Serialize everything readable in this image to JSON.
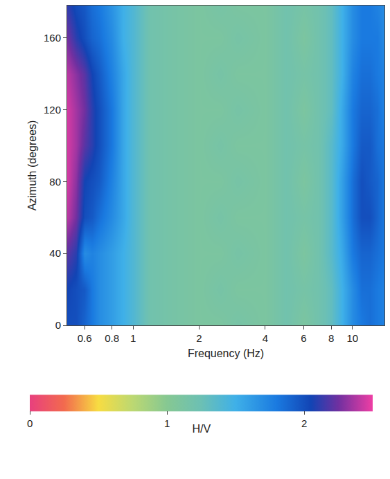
{
  "chart_data": {
    "type": "heatmap",
    "xlabel": "Frequency (Hz)",
    "ylabel": "Azimuth (degrees)",
    "log": "x",
    "x": [
      0.5,
      0.55,
      0.6,
      0.65,
      0.7,
      0.8,
      0.9,
      1.0,
      1.2,
      1.5,
      2,
      2.5,
      3,
      4,
      5,
      6,
      7,
      8,
      9,
      10,
      11,
      12,
      13,
      14
    ],
    "y": [
      0,
      20,
      40,
      60,
      80,
      100,
      120,
      140,
      160,
      180
    ],
    "z": [
      [
        2.0,
        2.0,
        1.9,
        1.8,
        1.7,
        1.6,
        1.5,
        1.4,
        1.2,
        1.15,
        1.1,
        1.1,
        1.15,
        1.1,
        1.2,
        1.1,
        1.2,
        1.3,
        1.5,
        1.7,
        1.8,
        1.85,
        1.8,
        1.75
      ],
      [
        2.05,
        2.0,
        1.95,
        1.8,
        1.7,
        1.6,
        1.5,
        1.4,
        1.2,
        1.15,
        1.1,
        1.15,
        1.1,
        1.1,
        1.2,
        1.15,
        1.2,
        1.3,
        1.5,
        1.7,
        1.85,
        1.85,
        1.8,
        1.75
      ],
      [
        2.2,
        2.1,
        1.7,
        1.75,
        1.7,
        1.6,
        1.5,
        1.4,
        1.2,
        1.15,
        1.1,
        1.1,
        1.15,
        1.1,
        1.2,
        1.1,
        1.2,
        1.35,
        1.55,
        1.8,
        1.9,
        1.9,
        1.85,
        1.8
      ],
      [
        2.4,
        2.25,
        2.0,
        1.95,
        1.85,
        1.7,
        1.55,
        1.4,
        1.2,
        1.15,
        1.1,
        1.15,
        1.1,
        1.1,
        1.2,
        1.15,
        1.2,
        1.35,
        1.6,
        1.85,
        2.0,
        2.0,
        1.9,
        1.8
      ],
      [
        2.45,
        2.3,
        2.05,
        2.0,
        1.95,
        1.75,
        1.55,
        1.4,
        1.2,
        1.15,
        1.1,
        1.1,
        1.15,
        1.1,
        1.2,
        1.1,
        1.2,
        1.35,
        1.6,
        1.85,
        2.0,
        1.95,
        1.9,
        1.8
      ],
      [
        2.45,
        2.35,
        2.2,
        2.1,
        2.0,
        1.8,
        1.55,
        1.4,
        1.2,
        1.15,
        1.1,
        1.15,
        1.1,
        1.1,
        1.2,
        1.15,
        1.2,
        1.35,
        1.55,
        1.8,
        1.95,
        1.95,
        1.85,
        1.8
      ],
      [
        2.45,
        2.35,
        2.25,
        2.1,
        2.0,
        1.8,
        1.55,
        1.4,
        1.2,
        1.15,
        1.1,
        1.1,
        1.15,
        1.1,
        1.2,
        1.1,
        1.2,
        1.3,
        1.55,
        1.8,
        1.9,
        1.9,
        1.85,
        1.75
      ],
      [
        2.4,
        2.3,
        2.2,
        2.05,
        1.95,
        1.75,
        1.55,
        1.4,
        1.2,
        1.15,
        1.1,
        1.15,
        1.1,
        1.1,
        1.2,
        1.15,
        1.2,
        1.3,
        1.5,
        1.75,
        1.85,
        1.85,
        1.8,
        1.75
      ],
      [
        2.25,
        2.1,
        2.0,
        1.9,
        1.85,
        1.7,
        1.5,
        1.4,
        1.2,
        1.15,
        1.1,
        1.1,
        1.15,
        1.1,
        1.2,
        1.1,
        1.2,
        1.3,
        1.5,
        1.7,
        1.8,
        1.8,
        1.8,
        1.7
      ],
      [
        2.1,
        2.0,
        1.95,
        1.85,
        1.8,
        1.65,
        1.5,
        1.4,
        1.2,
        1.15,
        1.1,
        1.15,
        1.1,
        1.1,
        1.2,
        1.15,
        1.2,
        1.3,
        1.5,
        1.7,
        1.8,
        1.8,
        1.75,
        1.7
      ]
    ],
    "xlim": [
      0.5,
      14
    ],
    "ylim": [
      0,
      178
    ],
    "xticks": [
      0.6,
      0.8,
      1,
      2,
      4,
      6,
      8,
      10
    ],
    "yticks": [
      0,
      40,
      80,
      120,
      160
    ],
    "colorbar": {
      "title": "H/V",
      "range": [
        0,
        2.5
      ],
      "ticks": [
        0,
        1,
        2
      ]
    }
  }
}
